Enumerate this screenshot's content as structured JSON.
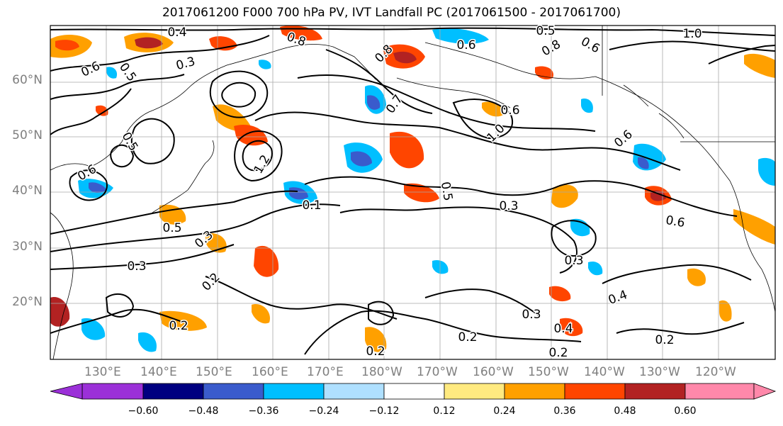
{
  "title": "2017061200 F000 700 hPa PV, IVT Landfall PC (2017061500 - 2017061700)",
  "lat_labels": [
    "60°N",
    "50°N",
    "40°N",
    "30°N",
    "20°N"
  ],
  "lon_labels": [
    "130°E",
    "140°E",
    "150°E",
    "160°E",
    "170°E",
    "180°W",
    "170°W",
    "160°W",
    "150°W",
    "140°W",
    "130°W",
    "120°W"
  ],
  "colorbar": {
    "ticks": [
      "−0.60",
      "−0.48",
      "−0.36",
      "−0.24",
      "−0.12",
      "0.12",
      "0.24",
      "0.36",
      "0.48",
      "0.60"
    ],
    "colors": [
      "#9b30d8",
      "#000080",
      "#3a5bcc",
      "#00bfff",
      "#afe0ff",
      "#ffffff",
      "#ffea80",
      "#ffa000",
      "#ff4500",
      "#b22222",
      "#ff88aa"
    ]
  },
  "contour_labels": [
    {
      "text": "0.4"
    },
    {
      "text": "0.3"
    },
    {
      "text": "0.6"
    },
    {
      "text": "0.5"
    },
    {
      "text": "0.8"
    },
    {
      "text": "0.8"
    },
    {
      "text": "1.0"
    },
    {
      "text": "0.6"
    },
    {
      "text": "0.5"
    },
    {
      "text": "0.6"
    },
    {
      "text": "0.8"
    },
    {
      "text": "1.0"
    },
    {
      "text": "0.6"
    },
    {
      "text": "0.3"
    },
    {
      "text": "0.5"
    },
    {
      "text": "0.6"
    },
    {
      "text": "0.3"
    },
    {
      "text": "0.2"
    },
    {
      "text": "0.4"
    },
    {
      "text": "0.3"
    },
    {
      "text": "0.4"
    },
    {
      "text": "0.2"
    },
    {
      "text": "0.2"
    },
    {
      "text": "0.2"
    },
    {
      "text": "0.2"
    },
    {
      "text": "0.3"
    },
    {
      "text": "0.5"
    },
    {
      "text": "0.3"
    },
    {
      "text": "0.2"
    },
    {
      "text": "0.5"
    },
    {
      "text": "0.6"
    },
    {
      "text": "0.1"
    },
    {
      "text": "0.7"
    },
    {
      "text": "0.6"
    },
    {
      "text": "1.2"
    }
  ]
}
